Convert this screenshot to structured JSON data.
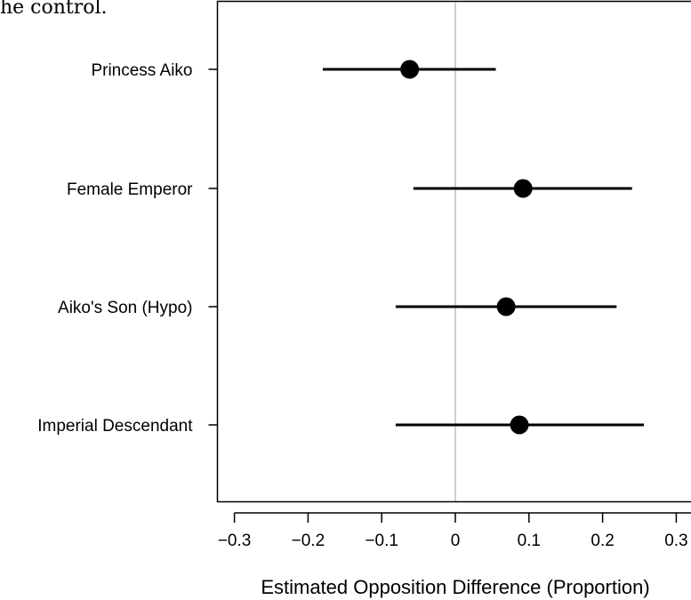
{
  "fragment_text": "he control.",
  "chart_data": {
    "type": "scatter",
    "xlabel": "Estimated Opposition Difference (Proportion)",
    "xlim": [
      -0.3,
      0.3
    ],
    "xticks": [
      -0.3,
      -0.2,
      -0.1,
      0,
      0.1,
      0.2,
      0.3
    ],
    "xtick_labels": [
      "−0.3",
      "−0.2",
      "−0.1",
      "0",
      "0.1",
      "0.2",
      "0.3"
    ],
    "reference_line": 0,
    "categories": [
      "Princess Aiko",
      "Female Emperor",
      "Aiko's Son (Hypo)",
      "Imperial Descendant"
    ],
    "points": [
      {
        "label": "Princess Aiko",
        "estimate": -0.062,
        "ci_low": -0.18,
        "ci_high": 0.055
      },
      {
        "label": "Female Emperor",
        "estimate": 0.092,
        "ci_low": -0.057,
        "ci_high": 0.24
      },
      {
        "label": "Aiko's Son (Hypo)",
        "estimate": 0.069,
        "ci_low": -0.081,
        "ci_high": 0.219
      },
      {
        "label": "Imperial Descendant",
        "estimate": 0.087,
        "ci_low": -0.081,
        "ci_high": 0.256
      }
    ]
  }
}
